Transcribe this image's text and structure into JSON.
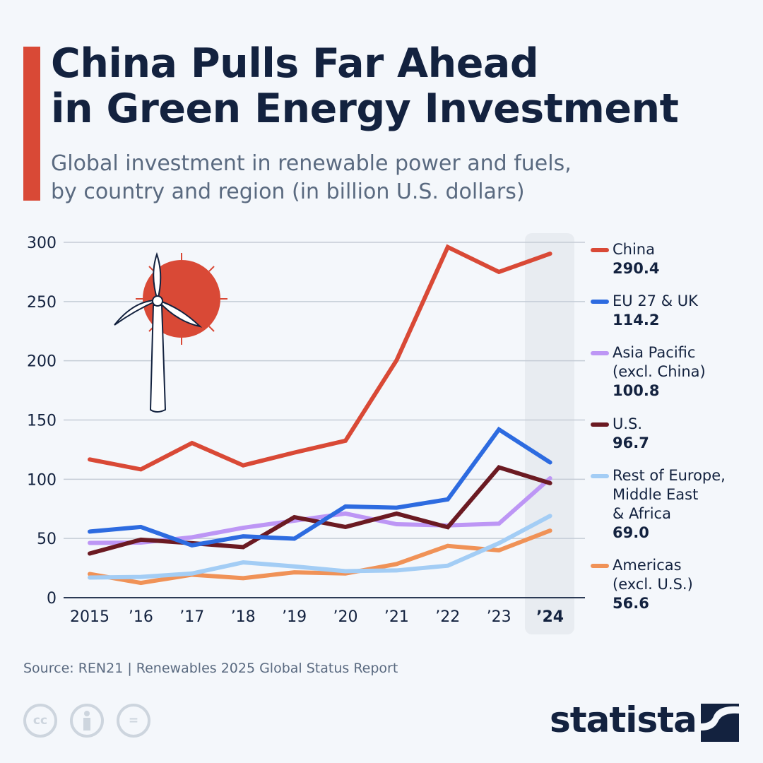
{
  "header": {
    "title": "China Pulls Far Ahead\nin Green Energy Investment",
    "subtitle": "Global investment in renewable power and fuels,\nby country and region (in billion U.S. dollars)"
  },
  "chart_data": {
    "type": "line",
    "title": "China Pulls Far Ahead in Green Energy Investment",
    "subtitle": "Global investment in renewable power and fuels, by country and region (in billion U.S. dollars)",
    "categories": [
      "2015",
      "’16",
      "’17",
      "’18",
      "’19",
      "’20",
      "’21",
      "’22",
      "’23",
      "’24"
    ],
    "yticks": [
      0,
      50,
      100,
      150,
      200,
      250,
      300
    ],
    "ylim": [
      0,
      300
    ],
    "grid": true,
    "legend_position": "right",
    "highlighted_category": "’24",
    "series": [
      {
        "name": "China",
        "label_value": "290.4",
        "color": "#d94936",
        "values": [
          116.7,
          108.3,
          130.6,
          111.7,
          122.5,
          132.5,
          200.5,
          296,
          275,
          290.4
        ]
      },
      {
        "name": "EU 27 & UK",
        "label_value": "114.2",
        "color": "#2d6be0",
        "values": [
          55.8,
          59.7,
          44.2,
          51.8,
          49.8,
          77,
          76,
          83,
          142,
          114.2
        ]
      },
      {
        "name": "Asia Pacific\n(excl. China)",
        "label_value": "100.8",
        "color": "#bd96f5",
        "values": [
          46.2,
          46.5,
          51,
          59,
          65,
          71,
          62,
          61,
          62.5,
          100.8
        ]
      },
      {
        "name": "U.S.",
        "label_value": "96.7",
        "color": "#6b1a22",
        "values": [
          37.3,
          49,
          46,
          42.7,
          68,
          59.7,
          71,
          59.5,
          110,
          96.7
        ]
      },
      {
        "name": "Rest of Europe,\nMiddle East\n& Africa",
        "label_value": "69.0",
        "color": "#a3cdf5",
        "values": [
          17,
          17.5,
          20.4,
          29.8,
          26.4,
          22.4,
          23,
          27,
          46,
          69.0
        ]
      },
      {
        "name": "Americas\n(excl. U.S.)",
        "label_value": "56.6",
        "color": "#f09257",
        "values": [
          20,
          12.5,
          19.4,
          16.5,
          21.4,
          20.4,
          28.4,
          43.7,
          40,
          56.6
        ]
      }
    ]
  },
  "footer": {
    "source": "Source: REN21 | Renewables 2025 Global Status Report",
    "license_icons": [
      "cc-icon",
      "attribution-icon",
      "no-derivatives-icon"
    ],
    "cc_text": "cc",
    "nd_text": "=",
    "logo": "statista"
  }
}
